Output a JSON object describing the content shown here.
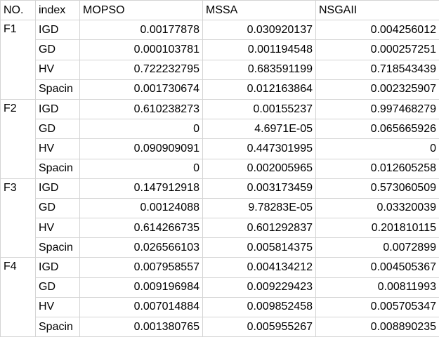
{
  "table": {
    "header": [
      "NO.",
      "index",
      "MOPSO",
      "MSSA",
      "NSGAII"
    ],
    "groups": [
      {
        "no": "F1",
        "rows": [
          [
            "IGD",
            "0.00177878",
            "0.030920137",
            "0.004256012"
          ],
          [
            "GD",
            "0.000103781",
            "0.001194548",
            "0.000257251"
          ],
          [
            "HV",
            "0.722232795",
            "0.683591199",
            "0.718543439"
          ],
          [
            "Spacin",
            "0.001730674",
            "0.012163864",
            "0.002325907"
          ]
        ]
      },
      {
        "no": "F2",
        "rows": [
          [
            "IGD",
            "0.610238273",
            "0.00155237",
            "0.997468279"
          ],
          [
            "GD",
            "0",
            "4.6971E-05",
            "0.065665926"
          ],
          [
            "HV",
            "0.090909091",
            "0.447301995",
            "0"
          ],
          [
            "Spacin",
            "0",
            "0.002005965",
            "0.012605258"
          ]
        ]
      },
      {
        "no": "F3",
        "rows": [
          [
            "IGD",
            "0.147912918",
            "0.003173459",
            "0.573060509"
          ],
          [
            "GD",
            "0.00124088",
            "9.78283E-05",
            "0.03320039"
          ],
          [
            "HV",
            "0.614266735",
            "0.601292837",
            "0.201810115"
          ],
          [
            "Spacin",
            "0.026566103",
            "0.005814375",
            "0.0072899"
          ]
        ]
      },
      {
        "no": "F4",
        "rows": [
          [
            "IGD",
            "0.007958557",
            "0.004134212",
            "0.004505367"
          ],
          [
            "GD",
            "0.009196984",
            "0.009229423",
            "0.00811993"
          ],
          [
            "HV",
            "0.007014884",
            "0.009852458",
            "0.005705347"
          ],
          [
            "Spacin",
            "0.001380765",
            "0.005955267",
            "0.008890235"
          ]
        ]
      }
    ]
  }
}
